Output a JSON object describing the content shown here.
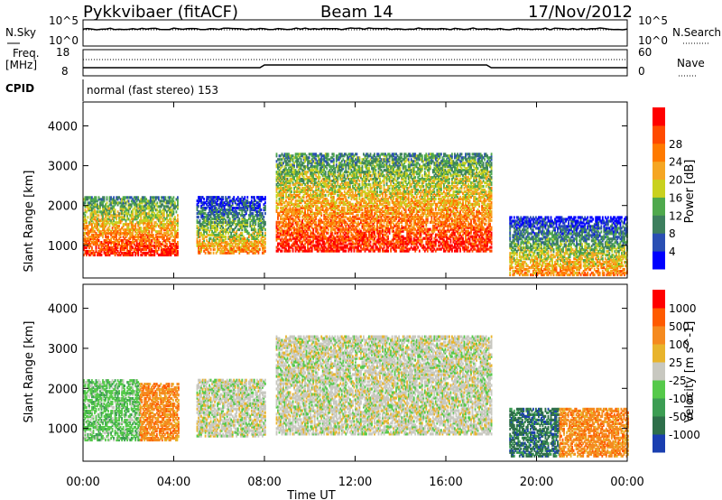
{
  "header": {
    "station": "Pykkvibaer (fitACF)",
    "beam": "Beam 14",
    "date": "17/Nov/2012"
  },
  "top_panels": {
    "nsky_label": "N.Sky",
    "nsearch_label": "N.Search",
    "noise_tick_high": "10^5",
    "noise_tick_low": "10^0",
    "freq_label": "Freq.",
    "freq_unit": "[MHz]",
    "freq_ticks": [
      "18",
      "8"
    ],
    "nave_label": "Nave",
    "nave_ticks": [
      "60",
      "0"
    ],
    "cpid_label": "CPID",
    "cpid_text": "normal (fast stereo) 153"
  },
  "chart_data": [
    {
      "type": "heatmap",
      "title": "",
      "parameter": "Power",
      "xlabel": "Time UT",
      "ylabel": "Slant Range [km]",
      "xlim_hours": [
        0,
        24
      ],
      "ylim_km": [
        180,
        4600
      ],
      "x_ticks": [
        "00:00",
        "04:00",
        "08:00",
        "12:00",
        "16:00",
        "20:00",
        "00:00"
      ],
      "y_ticks": [
        1000,
        2000,
        3000,
        4000
      ],
      "colorbar": {
        "label": "Power [dB]",
        "ticks": [
          "4",
          "8",
          "12",
          "16",
          "20",
          "24",
          "28"
        ],
        "colors": [
          "#0000ff",
          "#2a4fb3",
          "#3d7f5e",
          "#4fa94d",
          "#c9d11f",
          "#f5a623",
          "#ff7a00",
          "#ff4a00",
          "#ff0000"
        ]
      },
      "scatter_regions": [
        {
          "t": [
            0.0,
            4.2
          ],
          "range_km": [
            750,
            2200
          ],
          "level": "high"
        },
        {
          "t": [
            5.0,
            8.0
          ],
          "range_km": [
            800,
            2200
          ],
          "level": "medium"
        },
        {
          "t": [
            8.5,
            18.0
          ],
          "range_km": [
            850,
            3300
          ],
          "level": "high"
        },
        {
          "t": [
            18.8,
            24.0
          ],
          "range_km": [
            250,
            1700
          ],
          "level": "medium"
        }
      ]
    },
    {
      "type": "heatmap",
      "title": "",
      "parameter": "Velocity",
      "xlabel": "Time UT",
      "ylabel": "Slant Range [km]",
      "xlim_hours": [
        0,
        24
      ],
      "ylim_km": [
        180,
        4600
      ],
      "x_ticks": [
        "00:00",
        "04:00",
        "08:00",
        "12:00",
        "16:00",
        "20:00",
        "00:00"
      ],
      "y_ticks": [
        1000,
        2000,
        3000,
        4000
      ],
      "colorbar": {
        "label": "Velocity [m s^-1]",
        "ticks": [
          "1000",
          "500",
          "100",
          "25",
          "-25",
          "-100",
          "-500",
          "-1000"
        ],
        "colors": [
          "#1a3fb0",
          "#2e6f4a",
          "#3c9d53",
          "#55c94a",
          "#c8c8c0",
          "#e8b42c",
          "#f58a1f",
          "#ff5a00",
          "#ff0000"
        ]
      },
      "scatter_regions": [
        {
          "t": [
            0.0,
            2.5
          ],
          "range_km": [
            700,
            2200
          ],
          "level": "green"
        },
        {
          "t": [
            2.5,
            4.2
          ],
          "range_km": [
            700,
            2100
          ],
          "level": "orange"
        },
        {
          "t": [
            5.0,
            8.0
          ],
          "range_km": [
            800,
            2200
          ],
          "level": "grey"
        },
        {
          "t": [
            8.5,
            18.0
          ],
          "range_km": [
            850,
            3300
          ],
          "level": "grey"
        },
        {
          "t": [
            18.8,
            21.0
          ],
          "range_km": [
            300,
            1500
          ],
          "level": "teal"
        },
        {
          "t": [
            21.0,
            24.0
          ],
          "range_km": [
            300,
            1500
          ],
          "level": "orange"
        }
      ]
    }
  ]
}
